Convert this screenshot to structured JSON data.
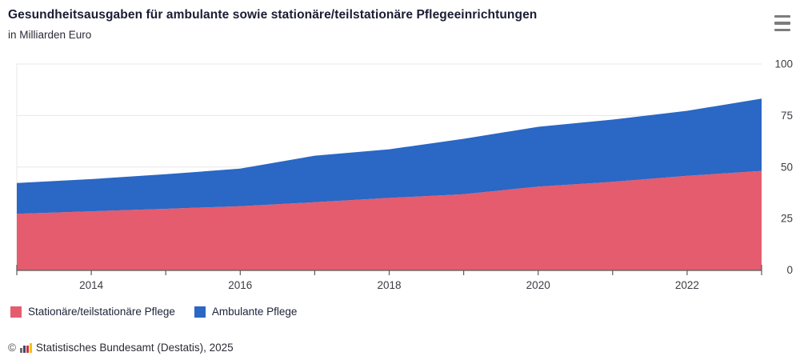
{
  "header": {
    "title": "Gesundheitsausgaben für ambulante sowie stationäre/teilstationäre Pflegeeinrichtungen",
    "subtitle": "in Milliarden Euro"
  },
  "menu": {
    "icon": "hamburger-icon"
  },
  "chart_data": {
    "type": "area",
    "stacked": true,
    "title": "Gesundheitsausgaben für ambulante sowie stationäre/teilstationäre Pflegeeinrichtungen",
    "ylabel": "in Milliarden Euro",
    "x": [
      2013,
      2014,
      2015,
      2016,
      2017,
      2018,
      2019,
      2020,
      2021,
      2022,
      2023
    ],
    "series": [
      {
        "name": "Stationäre/teilstationäre Pflege",
        "color": "#e45c6e",
        "values": [
          27.3,
          28.5,
          29.7,
          31.0,
          32.9,
          35.0,
          36.8,
          40.5,
          42.8,
          45.7,
          48.1
        ]
      },
      {
        "name": "Ambulante Pflege",
        "color": "#2b67c4",
        "values": [
          14.9,
          15.6,
          16.8,
          18.2,
          22.6,
          23.6,
          26.9,
          29.0,
          30.2,
          31.6,
          35.1
        ]
      }
    ],
    "ylim": [
      0,
      100
    ],
    "yticks": [
      0,
      25,
      50,
      75,
      100
    ],
    "xtick_years_labeled": [
      2014,
      2016,
      2018,
      2020,
      2022
    ],
    "grid": true,
    "grid_color": "#e7e7e7",
    "axis_color": "#5a5a5a",
    "tick_label_color": "#3c3c44",
    "legend_position": "bottom"
  },
  "footer": {
    "copyright": "©",
    "source": "Statistisches Bundesamt (Destatis), 2025"
  }
}
